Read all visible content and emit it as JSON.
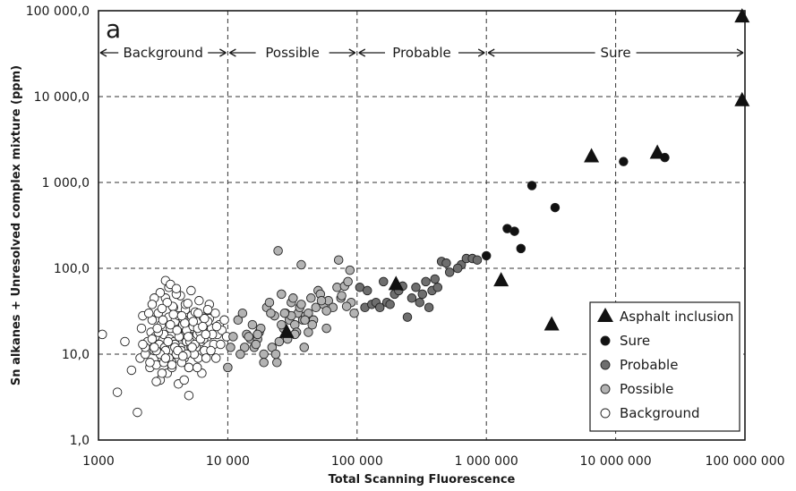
{
  "chart_data": {
    "type": "scatter",
    "panel_label": "a",
    "xlabel": "Total Scanning Fluorescence",
    "ylabel": "Sn alkanes + Unresolved complex mixture (ppm)",
    "x_scale": "log",
    "y_scale": "log",
    "xlim": [
      1000,
      100000000
    ],
    "ylim": [
      1,
      100000
    ],
    "x_ticks": [
      {
        "value": 1000,
        "label": "1000"
      },
      {
        "value": 10000,
        "label": "10 000"
      },
      {
        "value": 100000,
        "label": "100 000"
      },
      {
        "value": 1000000,
        "label": "1 000 000"
      },
      {
        "value": 10000000,
        "label": "10 000 000"
      },
      {
        "value": 100000000,
        "label": "100 000 000"
      }
    ],
    "y_ticks": [
      {
        "value": 1,
        "label": "1,0"
      },
      {
        "value": 10,
        "label": "10,0"
      },
      {
        "value": 100,
        "label": "100,0"
      },
      {
        "value": 1000,
        "label": "1 000,0"
      },
      {
        "value": 10000,
        "label": "10 000,0"
      },
      {
        "value": 100000,
        "label": "100 000,0"
      }
    ],
    "grid": "dashed at decades",
    "zones": [
      {
        "label": "Background",
        "from": 1000,
        "to": 10000
      },
      {
        "label": "Possible",
        "from": 10000,
        "to": 100000
      },
      {
        "label": "Probable",
        "from": 100000,
        "to": 1000000
      },
      {
        "label": "Sure",
        "from": 1000000,
        "to": 100000000
      }
    ],
    "legend_position": "bottom-right",
    "series": [
      {
        "name": "Asphalt inclusion",
        "marker": "triangle",
        "color": "#111111",
        "x": [
          28500,
          200000,
          1300000,
          3200000,
          6500000,
          21000000,
          95000000,
          95000000
        ],
        "y": [
          18,
          65,
          72,
          22,
          2000,
          2200,
          9000,
          85000
        ]
      },
      {
        "name": "Sure",
        "marker": "circle",
        "color": "#111111",
        "x": [
          1000000,
          1450000,
          1650000,
          1850000,
          2250000,
          3400000,
          11500000,
          24000000
        ],
        "y": [
          140,
          290,
          270,
          170,
          920,
          510,
          1750,
          1950
        ]
      },
      {
        "name": "Probable",
        "marker": "circle",
        "color": "#6e6e6e",
        "x": [
          105000,
          115000,
          120000,
          130000,
          140000,
          150000,
          160000,
          170000,
          180000,
          195000,
          210000,
          225000,
          245000,
          265000,
          285000,
          305000,
          320000,
          340000,
          360000,
          380000,
          400000,
          420000,
          450000,
          490000,
          520000,
          640000,
          700000,
          780000,
          850000,
          600000
        ],
        "y": [
          60,
          35,
          55,
          38,
          40,
          35,
          70,
          40,
          38,
          50,
          55,
          62,
          27,
          45,
          60,
          40,
          50,
          70,
          35,
          55,
          75,
          60,
          120,
          115,
          90,
          110,
          130,
          130,
          125,
          100
        ],
        "note": "values estimated from marks"
      },
      {
        "name": "Possible",
        "marker": "circle",
        "color": "#b3b3b3",
        "x": [
          10000,
          10500,
          11000,
          12000,
          13000,
          13500,
          14000,
          15000,
          15500,
          16000,
          17000,
          17500,
          18000,
          19000,
          20000,
          21000,
          22000,
          23000,
          24000,
          25000,
          26000,
          27000,
          28000,
          30000,
          31000,
          32000,
          33000,
          34000,
          35000,
          36000,
          37000,
          38000,
          39000,
          40000,
          42000,
          44000,
          46000,
          48000,
          50000,
          52000,
          55000,
          58000,
          60000,
          65000,
          70000,
          75000,
          80000,
          85000,
          90000,
          95000,
          24500,
          37000,
          72000,
          88000,
          12500,
          17000,
          19000,
          21500,
          26000,
          33000,
          42000,
          58000,
          76000,
          29000,
          39500,
          14500,
          16500,
          23500,
          31000,
          53000,
          83000,
          27500,
          45000
        ],
        "y": [
          7,
          12,
          16,
          25,
          30,
          12,
          17,
          15,
          22,
          12,
          15,
          18,
          20,
          10,
          35,
          40,
          12,
          28,
          8,
          14,
          50,
          20,
          30,
          25,
          40,
          45,
          22,
          18,
          30,
          35,
          38,
          25,
          12,
          28,
          30,
          45,
          25,
          35,
          55,
          50,
          38,
          20,
          42,
          35,
          60,
          45,
          62,
          70,
          40,
          30,
          160,
          110,
          125,
          95,
          10,
          17,
          8,
          30,
          22,
          17,
          18,
          32,
          48,
          15,
          25,
          16,
          13,
          10,
          28,
          42,
          36,
          30,
          22
        ],
        "note": "values estimated from marks"
      },
      {
        "name": "Background",
        "marker": "circle",
        "color": "#ffffff",
        "x": [
          1070,
          1400,
          1600,
          1800,
          2000,
          2100,
          2150,
          2200,
          2300,
          2400,
          2500,
          2550,
          2600,
          2700,
          2750,
          2800,
          2900,
          2950,
          3000,
          3050,
          3100,
          3200,
          3250,
          3300,
          3400,
          3500,
          3550,
          3600,
          3700,
          3800,
          3850,
          3900,
          4000,
          4100,
          4150,
          4200,
          4300,
          4400,
          4500,
          4600,
          4700,
          4800,
          4900,
          5000,
          5100,
          5200,
          5300,
          5400,
          5500,
          5600,
          5700,
          5800,
          5900,
          6000,
          6200,
          6400,
          6600,
          6800,
          7000,
          7200,
          7500,
          7800,
          8000,
          8300,
          8600,
          9000,
          9400,
          9800,
          2300,
          2600,
          2900,
          3300,
          3600,
          3900,
          4200,
          4500,
          4800,
          5100,
          5400,
          5700,
          6100,
          6500,
          7000,
          7600,
          8200,
          2450,
          2850,
          3150,
          3450,
          3750,
          4050,
          4350,
          4650,
          4950,
          5250,
          5550,
          5850,
          6150,
          6450,
          6750,
          3000,
          3400,
          3800,
          4300,
          4700,
          5200,
          5600,
          6000,
          6600,
          7200,
          2700,
          3100,
          3500,
          4000,
          4400,
          4900,
          5400,
          5900,
          6400,
          7000,
          2600,
          3000,
          3200,
          3500,
          3900,
          4600,
          5000,
          5500,
          6300,
          8100,
          2200,
          2500,
          2800,
          3100,
          3300,
          3700,
          4100,
          4400,
          4800,
          5300,
          5800,
          6800,
          7400,
          8800,
          3300,
          3600,
          4000,
          2800,
          5000,
          2700,
          3700,
          4500
        ],
        "y": [
          17,
          3.6,
          14,
          6.5,
          2.1,
          9,
          20,
          28,
          10,
          14,
          7,
          18,
          25,
          11,
          16,
          7.5,
          30,
          13,
          5,
          22,
          9,
          17,
          12,
          45,
          6,
          27,
          15,
          20,
          8,
          35,
          14,
          24,
          10,
          19,
          4.5,
          28,
          12,
          16,
          22,
          9,
          33,
          14,
          18,
          7,
          25,
          12,
          20,
          15,
          10,
          28,
          13,
          17,
          9,
          24,
          14,
          18,
          11,
          22,
          16,
          26,
          20,
          13,
          30,
          17,
          22,
          19,
          25,
          16,
          12,
          15,
          18,
          11,
          22,
          13,
          16,
          26,
          19,
          14,
          21,
          12,
          18,
          15,
          24,
          17,
          21,
          30,
          20,
          25,
          14,
          36,
          19,
          11,
          23,
          16,
          28,
          13,
          20,
          15,
          27,
          17,
          52,
          40,
          29,
          48,
          38,
          55,
          31,
          42,
          26,
          38,
          45,
          34,
          60,
          50,
          28,
          39,
          24,
          30,
          21,
          33,
          38,
          10,
          8,
          9,
          12,
          5,
          7,
          10,
          6,
          9,
          13,
          8,
          11,
          6,
          9,
          7,
          11,
          8,
          10,
          12,
          7,
          9,
          11,
          13,
          72,
          65,
          58,
          4.8,
          3.3,
          12,
          7.5,
          9.5
        ],
        "note": "values estimated from marks"
      }
    ]
  }
}
